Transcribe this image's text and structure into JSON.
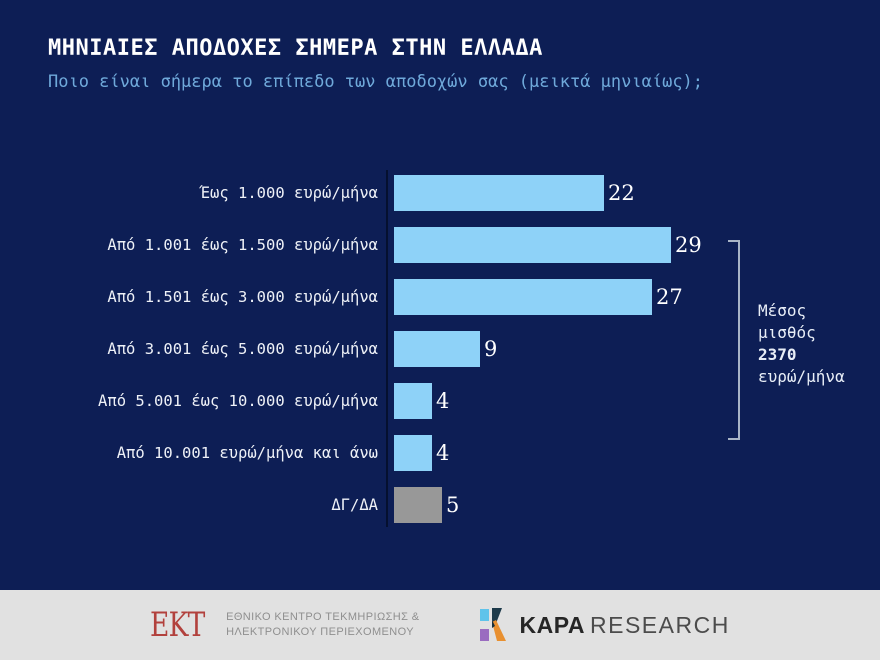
{
  "title": "ΜΗΝΙΑΙΕΣ ΑΠΟΔΟΧΕΣ ΣΗΜΕΡΑ ΣΤΗΝ ΕΛΛΑΔΑ",
  "subtitle": "Ποιο είναι σήμερα το επίπεδο των αποδοχών σας (μεικτά μηνιαίως);",
  "chart_data": {
    "type": "bar",
    "orientation": "horizontal",
    "categories": [
      "Έως 1.000 ευρώ/μήνα",
      "Από 1.001 έως 1.500 ευρώ/μήνα",
      "Από 1.501 έως 3.000 ευρώ/μήνα",
      "Από 3.001 έως 5.000 ευρώ/μήνα",
      "Από 5.001 έως 10.000 ευρώ/μήνα",
      "Από 10.001 ευρώ/μήνα και άνω",
      "ΔΓ/ΔΑ"
    ],
    "values": [
      22,
      29,
      27,
      9,
      4,
      4,
      5
    ],
    "bar_colors": [
      "#8ed2f8",
      "#8ed2f8",
      "#8ed2f8",
      "#8ed2f8",
      "#8ed2f8",
      "#8ed2f8",
      "#989898"
    ],
    "value_label_color": "#ffffff",
    "xlim": [
      0,
      29
    ],
    "grid": false,
    "annotation": {
      "lines": [
        "Μέσος",
        "μισθός",
        "2370",
        "ευρώ/μήνα"
      ],
      "bold_line_index": 2,
      "bracket_span_categories": [
        1,
        5
      ]
    }
  },
  "colors": {
    "background": "#0d1e55",
    "bar_blue": "#8ed2f8",
    "bar_gray": "#989898",
    "subtitle_blue": "#6fa9da",
    "bracket": "#a8b4c6",
    "footer_background": "#e1e1e1",
    "ekt_red": "#b2413d"
  },
  "footer": {
    "ekt": {
      "logo_text": "ΕΚΤ",
      "line1": "ΕΘΝΙΚΟ ΚΕΝΤΡΟ ΤΕΚΜΗΡΙΩΣΗΣ &",
      "line2": "ΗΛΕΚΤΡΟΝΙΚΟΥ ΠΕΡΙΕΧΟΜΕΝΟΥ"
    },
    "kapa": {
      "name_bold": "KAPA",
      "name_regular": "RESEARCH"
    }
  }
}
